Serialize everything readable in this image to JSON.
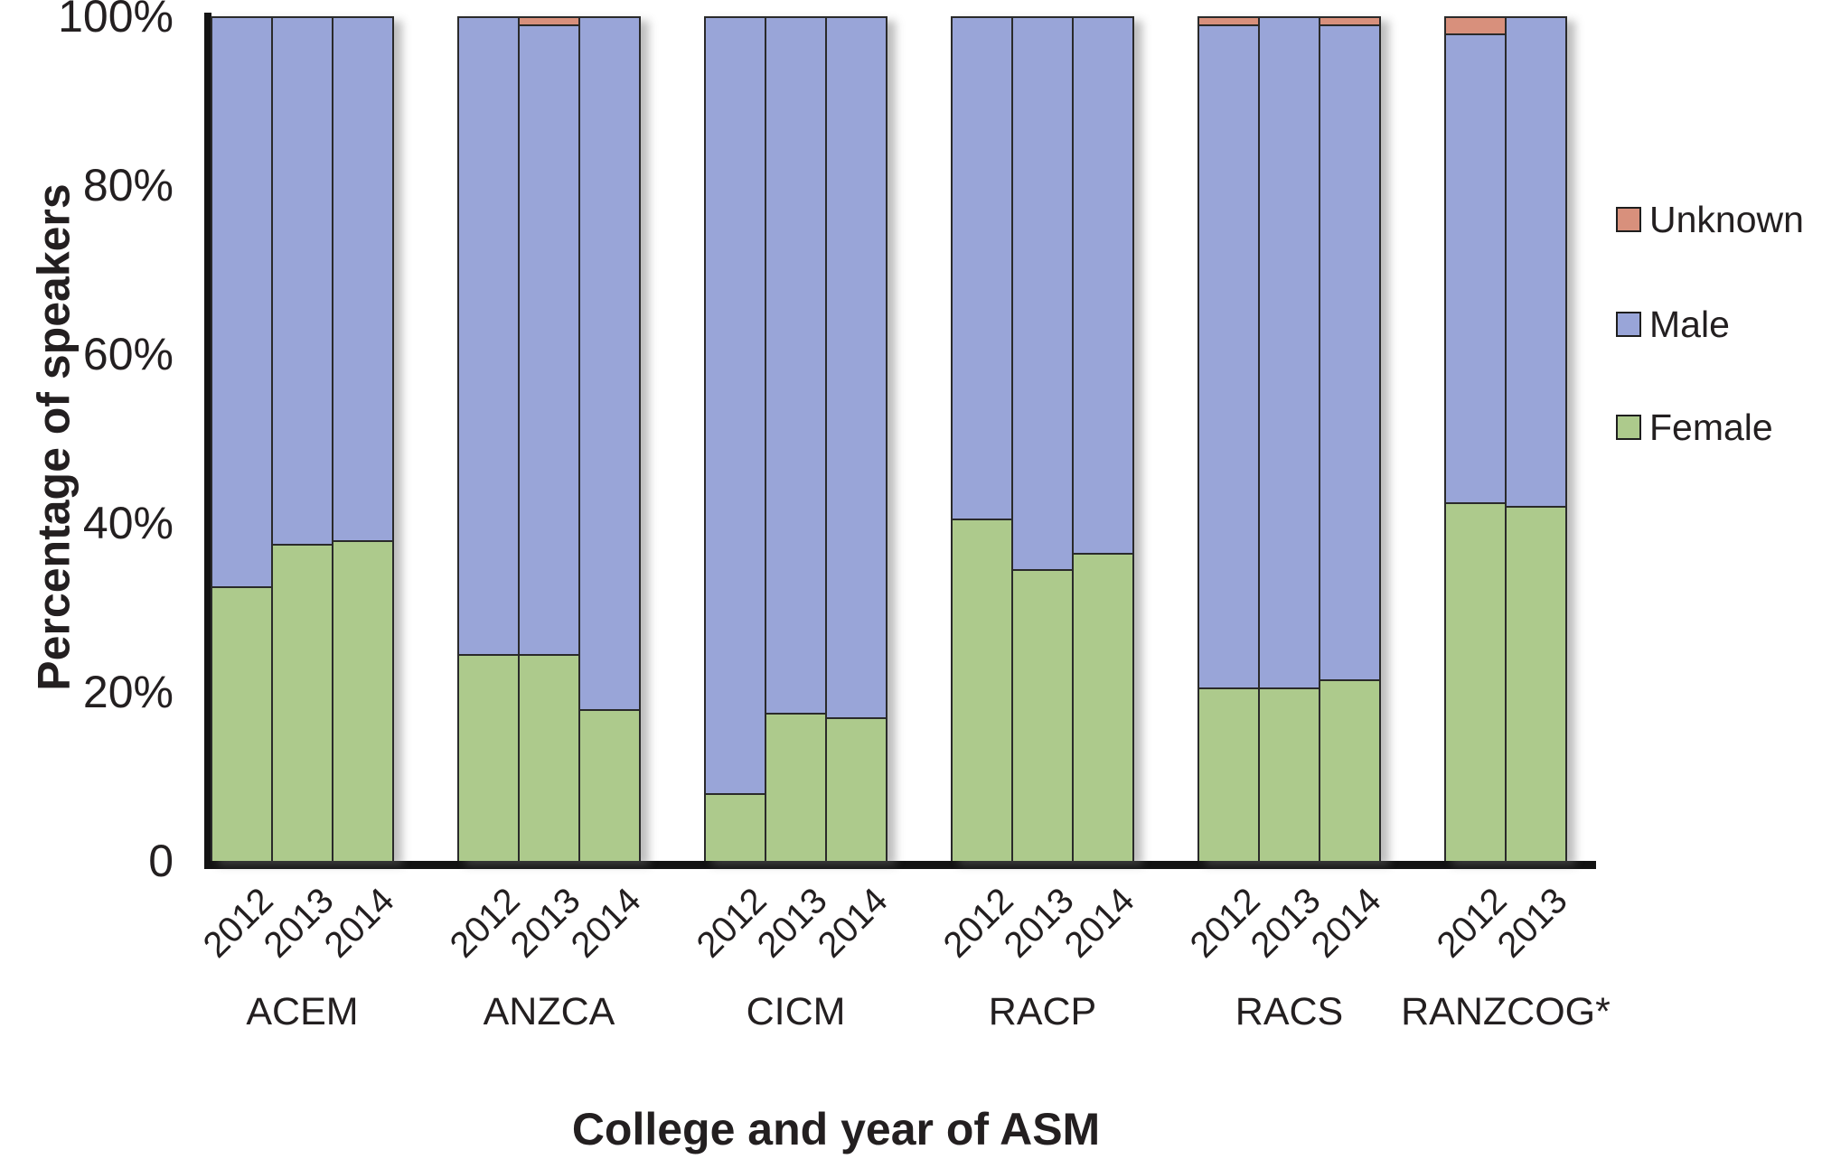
{
  "y_axis": {
    "title": "Percentage of speakers"
  },
  "x_axis": {
    "title": "College and year of ASM"
  },
  "legend": {
    "items": [
      {
        "label": "Unknown",
        "color": "#D8907C"
      },
      {
        "label": "Male",
        "color": "#99A5D8"
      },
      {
        "label": "Female",
        "color": "#ADCA8C"
      }
    ]
  },
  "chart_data": {
    "type": "bar",
    "stacked": true,
    "units": "percent",
    "title": "",
    "xlabel": "College and year of ASM",
    "ylabel": "Percentage of speakers",
    "ylim": [
      0,
      100
    ],
    "ytick_values": [
      100,
      80,
      60,
      40,
      20,
      0
    ],
    "ytick_labels": [
      "100%",
      "80%",
      "60%",
      "40%",
      "20%",
      "0"
    ],
    "grid": false,
    "legend_position": "right",
    "series_order_bottom_to_top": [
      "Female",
      "Male",
      "Unknown"
    ],
    "series_colors": {
      "Female": "#ADCA8C",
      "Male": "#99A5D8",
      "Unknown": "#D8907C"
    },
    "groups": [
      {
        "college": "ACEM",
        "years": [
          "2012",
          "2013",
          "2014"
        ],
        "Female": [
          32.5,
          37.5,
          38
        ],
        "Male": [
          67.5,
          62.5,
          62
        ],
        "Unknown": [
          0,
          0,
          0
        ]
      },
      {
        "college": "ANZCA",
        "years": [
          "2012",
          "2013",
          "2014"
        ],
        "Female": [
          24.5,
          24.5,
          18
        ],
        "Male": [
          75.5,
          74.5,
          82
        ],
        "Unknown": [
          0,
          1,
          0
        ]
      },
      {
        "college": "CICM",
        "years": [
          "2012",
          "2013",
          "2014"
        ],
        "Female": [
          8,
          17.5,
          17
        ],
        "Male": [
          92,
          82.5,
          83
        ],
        "Unknown": [
          0,
          0,
          0
        ]
      },
      {
        "college": "RACP",
        "years": [
          "2012",
          "2013",
          "2014"
        ],
        "Female": [
          40.5,
          34.5,
          36.5
        ],
        "Male": [
          59.5,
          65.5,
          63.5
        ],
        "Unknown": [
          0,
          0,
          0
        ]
      },
      {
        "college": "RACS",
        "years": [
          "2012",
          "2013",
          "2014"
        ],
        "Female": [
          20.5,
          20.5,
          21.5
        ],
        "Male": [
          78.5,
          79.5,
          77.5
        ],
        "Unknown": [
          1,
          0,
          1
        ]
      },
      {
        "college": "RANZCOG*",
        "years": [
          "2012",
          "2013"
        ],
        "Female": [
          42.5,
          42
        ],
        "Male": [
          55.5,
          58
        ],
        "Unknown": [
          2,
          0
        ]
      }
    ]
  }
}
